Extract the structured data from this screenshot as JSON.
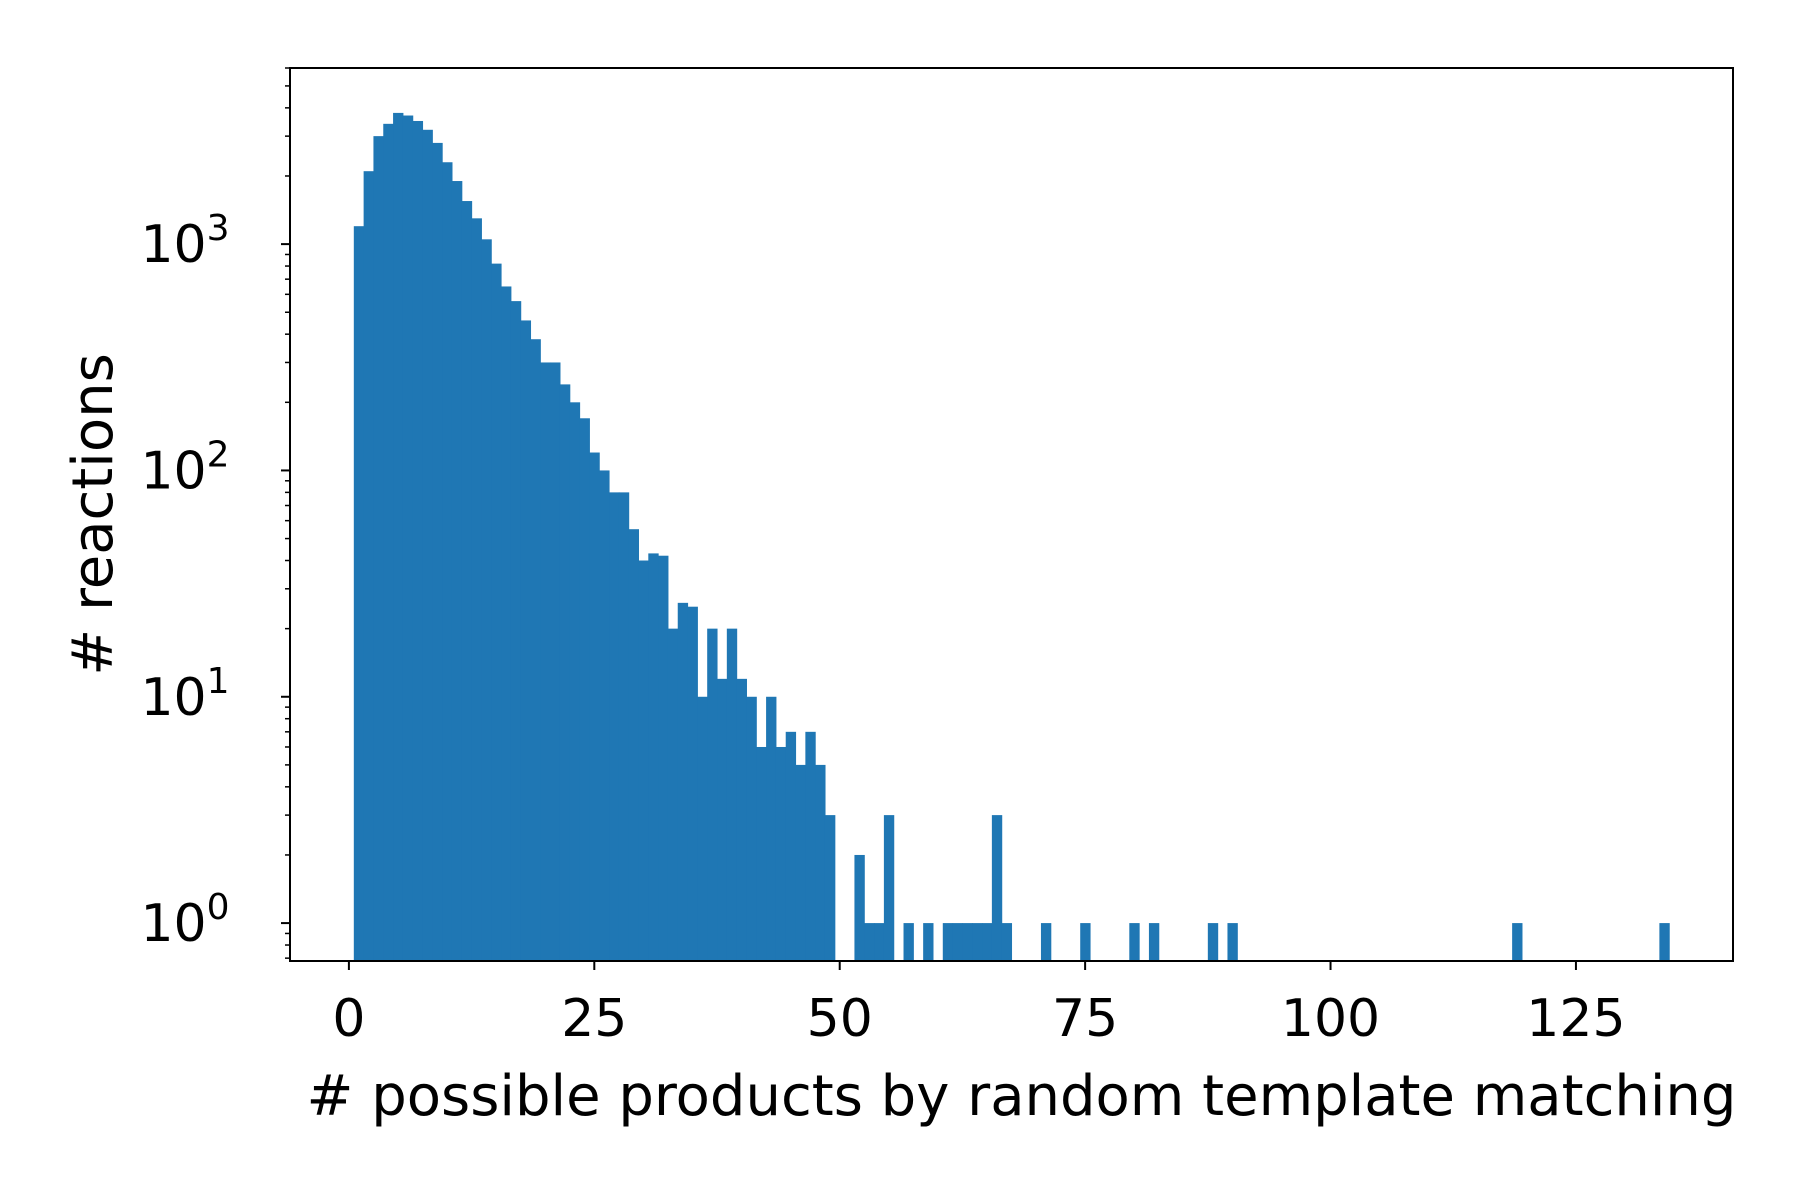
{
  "chart_data": {
    "type": "bar",
    "subtype": "histogram",
    "xlabel": "# possible products by random template matching",
    "ylabel": "# reactions",
    "yscale": "log",
    "xlim": [
      -6,
      141
    ],
    "ylim": [
      0.68,
      6000
    ],
    "x_ticks": [
      0,
      25,
      50,
      75,
      100,
      125
    ],
    "y_ticks": [
      {
        "value": 1,
        "base": "10",
        "exp": "0"
      },
      {
        "value": 10,
        "base": "10",
        "exp": "1"
      },
      {
        "value": 100,
        "base": "10",
        "exp": "2"
      },
      {
        "value": 1000,
        "base": "10",
        "exp": "3"
      }
    ],
    "bin_width": 0.993,
    "bin_starts": [
      0.5,
      1.5,
      2.5,
      3.5,
      4.5,
      5.5,
      6.5,
      7.5,
      8.5,
      9.5,
      10.5,
      11.5,
      12.5,
      13.5,
      14.5,
      15.5,
      16.5,
      17.5,
      18.5,
      19.5,
      20.5,
      21.5,
      22.5,
      23.5,
      24.5,
      25.5,
      26.5,
      27.5,
      28.5,
      29.5,
      30.5,
      31.5,
      32.5,
      33.5,
      34.5,
      35.5,
      36.5,
      37.5,
      38.5,
      39.5,
      40.5,
      41.5,
      42.5,
      43.5,
      44.5,
      45.5,
      46.5,
      47.5,
      48.5,
      51.5,
      52.5,
      53.5,
      54.5,
      56.5,
      58.5,
      60.5,
      61.5,
      62.5,
      63.5,
      64.5,
      65.5,
      66.5,
      70.5,
      74.5,
      79.5,
      81.5,
      87.5,
      89.5,
      118.5,
      133.5
    ],
    "values": [
      1200,
      2100,
      3000,
      3400,
      3800,
      3700,
      3500,
      3200,
      2800,
      2300,
      1900,
      1550,
      1300,
      1050,
      820,
      650,
      560,
      460,
      380,
      300,
      300,
      240,
      200,
      170,
      120,
      100,
      80,
      80,
      55,
      40,
      43,
      42,
      20,
      26,
      25,
      10,
      20,
      12,
      20,
      12,
      10,
      6,
      10,
      6,
      7,
      5,
      7,
      5,
      3,
      2,
      1,
      1,
      3,
      1,
      1,
      1,
      1,
      1,
      1,
      1,
      3,
      1,
      1,
      1,
      1,
      1,
      1,
      1,
      1,
      1
    ],
    "color": "#1f77b4",
    "grid": false,
    "legend": "none"
  }
}
